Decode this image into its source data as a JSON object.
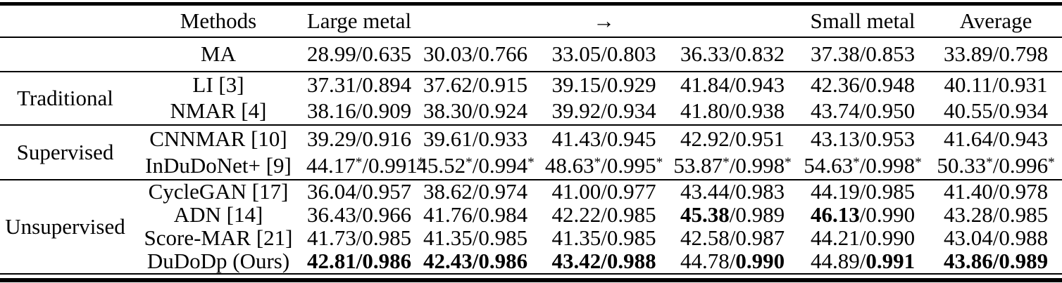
{
  "colors": {
    "text": "#000000",
    "background": "#ffffff",
    "rule": "#000000"
  },
  "table": {
    "header": {
      "group": "",
      "methods": "Methods",
      "cols": [
        "Large metal",
        "",
        "→",
        "",
        "Small metal",
        "Average"
      ],
      "arrow_icon": "→"
    },
    "groups": [
      {
        "label": "",
        "rows": [
          {
            "method": "MA",
            "cells": [
              {
                "psnr": "28.99",
                "ssim": "0.635"
              },
              {
                "psnr": "30.03",
                "ssim": "0.766"
              },
              {
                "psnr": "33.05",
                "ssim": "0.803"
              },
              {
                "psnr": "36.33",
                "ssim": "0.832"
              },
              {
                "psnr": "37.38",
                "ssim": "0.853"
              },
              {
                "psnr": "33.89",
                "ssim": "0.798"
              }
            ]
          }
        ]
      },
      {
        "label": "Traditional",
        "rows": [
          {
            "method": "LI [3]",
            "cells": [
              {
                "psnr": "37.31",
                "ssim": "0.894"
              },
              {
                "psnr": "37.62",
                "ssim": "0.915"
              },
              {
                "psnr": "39.15",
                "ssim": "0.929"
              },
              {
                "psnr": "41.84",
                "ssim": "0.943"
              },
              {
                "psnr": "42.36",
                "ssim": "0.948"
              },
              {
                "psnr": "40.11",
                "ssim": "0.931"
              }
            ]
          },
          {
            "method": "NMAR [4]",
            "cells": [
              {
                "psnr": "38.16",
                "ssim": "0.909"
              },
              {
                "psnr": "38.30",
                "ssim": "0.924"
              },
              {
                "psnr": "39.92",
                "ssim": "0.934"
              },
              {
                "psnr": "41.80",
                "ssim": "0.938"
              },
              {
                "psnr": "43.74",
                "ssim": "0.950"
              },
              {
                "psnr": "40.55",
                "ssim": "0.934"
              }
            ]
          }
        ]
      },
      {
        "label": "Supervised",
        "rows": [
          {
            "method": "CNNMAR [10]",
            "cells": [
              {
                "psnr": "39.29",
                "ssim": "0.916"
              },
              {
                "psnr": "39.61",
                "ssim": "0.933"
              },
              {
                "psnr": "41.43",
                "ssim": "0.945"
              },
              {
                "psnr": "42.92",
                "ssim": "0.951"
              },
              {
                "psnr": "43.13",
                "ssim": "0.953"
              },
              {
                "psnr": "41.64",
                "ssim": "0.943"
              }
            ]
          },
          {
            "method": "InDuDoNet+ [9]",
            "cells": [
              {
                "psnr": "44.17",
                "ssim": "0.991",
                "stars": true
              },
              {
                "psnr": "45.52",
                "ssim": "0.994",
                "stars": true
              },
              {
                "psnr": "48.63",
                "ssim": "0.995",
                "stars": true
              },
              {
                "psnr": "53.87",
                "ssim": "0.998",
                "stars": true
              },
              {
                "psnr": "54.63",
                "ssim": "0.998",
                "stars": true
              },
              {
                "psnr": "50.33",
                "ssim": "0.996",
                "stars": true
              }
            ]
          }
        ]
      },
      {
        "label": "Unsupervised",
        "rows": [
          {
            "method": "CycleGAN [17]",
            "cells": [
              {
                "psnr": "36.04",
                "ssim": "0.957"
              },
              {
                "psnr": "38.62",
                "ssim": "0.974"
              },
              {
                "psnr": "41.00",
                "ssim": "0.977"
              },
              {
                "psnr": "43.44",
                "ssim": "0.983"
              },
              {
                "psnr": "44.19",
                "ssim": "0.985"
              },
              {
                "psnr": "41.40",
                "ssim": "0.978"
              }
            ]
          },
          {
            "method": "ADN [14]",
            "cells": [
              {
                "psnr": "36.43",
                "ssim": "0.966"
              },
              {
                "psnr": "41.76",
                "ssim": "0.984"
              },
              {
                "psnr": "42.22",
                "ssim": "0.985"
              },
              {
                "psnr": "45.38",
                "ssim": "0.989",
                "bold": "psnr"
              },
              {
                "psnr": "46.13",
                "ssim": "0.990",
                "bold": "psnr"
              },
              {
                "psnr": "43.28",
                "ssim": "0.985"
              }
            ]
          },
          {
            "method": "Score-MAR [21]",
            "cells": [
              {
                "psnr": "41.73",
                "ssim": "0.985"
              },
              {
                "psnr": "41.35",
                "ssim": "0.985"
              },
              {
                "psnr": "41.35",
                "ssim": "0.985"
              },
              {
                "psnr": "42.58",
                "ssim": "0.987"
              },
              {
                "psnr": "44.21",
                "ssim": "0.990"
              },
              {
                "psnr": "43.04",
                "ssim": "0.988"
              }
            ]
          },
          {
            "method": "DuDoDp (Ours)",
            "cells": [
              {
                "psnr": "42.81",
                "ssim": "0.986",
                "bold": "both"
              },
              {
                "psnr": "42.43",
                "ssim": "0.986",
                "bold": "both"
              },
              {
                "psnr": "43.42",
                "ssim": "0.988",
                "bold": "both"
              },
              {
                "psnr": "44.78",
                "ssim": "0.990",
                "bold": "ssim"
              },
              {
                "psnr": "44.89",
                "ssim": "0.991",
                "bold": "ssim"
              },
              {
                "psnr": "43.86",
                "ssim": "0.989",
                "bold": "both"
              }
            ]
          }
        ]
      }
    ]
  }
}
